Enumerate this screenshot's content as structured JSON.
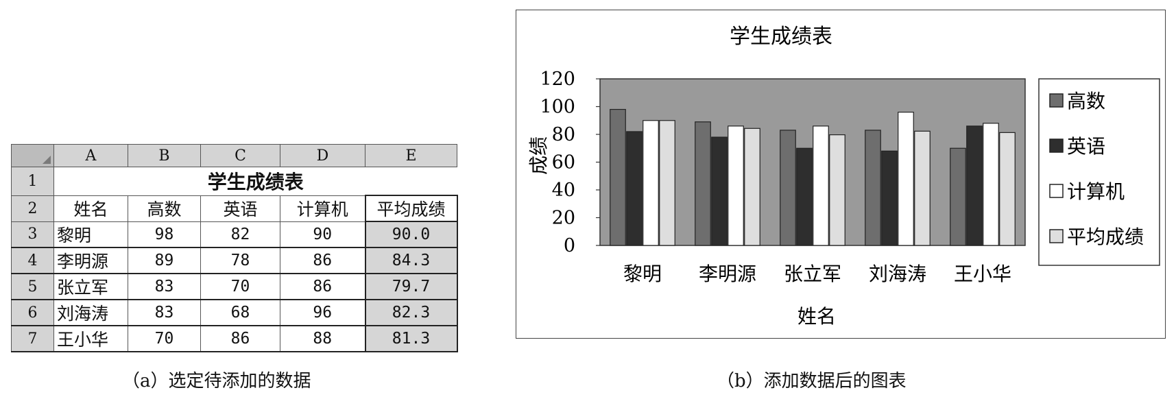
{
  "sheet": {
    "corner": "",
    "columns": [
      "A",
      "B",
      "C",
      "D",
      "E"
    ],
    "title_row": "1",
    "title": "学生成绩表",
    "header_row": "2",
    "headers": [
      "姓名",
      "高数",
      "英语",
      "计算机",
      "平均成绩"
    ],
    "rows": [
      {
        "row": "3",
        "name": "黎明",
        "math": "98",
        "english": "82",
        "computer": "90",
        "avg": "90.0"
      },
      {
        "row": "4",
        "name": "李明源",
        "math": "89",
        "english": "78",
        "computer": "86",
        "avg": "84.3"
      },
      {
        "row": "5",
        "name": "张立军",
        "math": "83",
        "english": "70",
        "computer": "86",
        "avg": "79.7"
      },
      {
        "row": "6",
        "name": "刘海涛",
        "math": "83",
        "english": "68",
        "computer": "96",
        "avg": "82.3"
      },
      {
        "row": "7",
        "name": "王小华",
        "math": "70",
        "english": "86",
        "computer": "88",
        "avg": "81.3"
      }
    ]
  },
  "captions": {
    "a": "（a）选定待添加的数据",
    "b": "（b）添加数据后的图表"
  },
  "chart_data": {
    "type": "bar",
    "title": "学生成绩表",
    "xlabel": "姓名",
    "ylabel": "成绩",
    "categories": [
      "黎明",
      "李明源",
      "张立军",
      "刘海涛",
      "王小华"
    ],
    "series": [
      {
        "name": "高数",
        "values": [
          98,
          89,
          83,
          83,
          70
        ],
        "color": "#6e6e6e"
      },
      {
        "name": "英语",
        "values": [
          82,
          78,
          70,
          68,
          86
        ],
        "color": "#2e2e2e"
      },
      {
        "name": "计算机",
        "values": [
          90,
          86,
          86,
          96,
          88
        ],
        "color": "#ffffff"
      },
      {
        "name": "平均成绩",
        "values": [
          90.0,
          84.3,
          79.7,
          82.3,
          81.3
        ],
        "color": "#dedede"
      }
    ],
    "ylim": [
      0,
      120
    ],
    "yticks": [
      "0",
      "20",
      "40",
      "60",
      "80",
      "100",
      "120"
    ],
    "grid": false,
    "plot_background": "#9a9a9a",
    "legend_position": "right"
  }
}
